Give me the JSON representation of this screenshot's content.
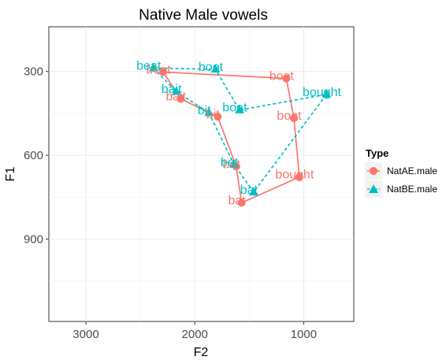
{
  "chart_data": {
    "type": "scatter",
    "title": "Native Male vowels",
    "xlabel": "F2",
    "ylabel": "F1",
    "x_reversed": true,
    "y_reversed": true,
    "xlim": [
      3340,
      540
    ],
    "ylim": [
      140,
      1195
    ],
    "xticks": [
      3000,
      2000,
      1000
    ],
    "xtick_labels": [
      "3000",
      "2000",
      "1000"
    ],
    "yticks": [
      300,
      600,
      900
    ],
    "ytick_labels": [
      "300",
      "600",
      "900"
    ],
    "grid": true,
    "legend": {
      "title": "Type",
      "placement": "right",
      "entries": [
        "NatAE.male",
        "NatBE.male"
      ]
    },
    "series": [
      {
        "name": "NatAE.male",
        "color": "#F8766D",
        "marker": "circle",
        "line": "solid",
        "points": [
          {
            "label": "beat",
            "x": 2290,
            "y": 302
          },
          {
            "label": "boot",
            "x": 1160,
            "y": 325
          },
          {
            "label": "boat",
            "x": 1090,
            "y": 467
          },
          {
            "label": "bought",
            "x": 1040,
            "y": 678
          },
          {
            "label": "bat",
            "x": 1570,
            "y": 770
          },
          {
            "label": "bet",
            "x": 1620,
            "y": 640
          },
          {
            "label": "bit",
            "x": 1790,
            "y": 462
          },
          {
            "label": "bait",
            "x": 2130,
            "y": 398
          }
        ]
      },
      {
        "name": "NatBE.male",
        "color": "#00BFC4",
        "marker": "triangle",
        "line": "dashed",
        "points": [
          {
            "label": "beat",
            "x": 2380,
            "y": 288
          },
          {
            "label": "boot",
            "x": 1810,
            "y": 292
          },
          {
            "label": "boat",
            "x": 1590,
            "y": 438
          },
          {
            "label": "bought",
            "x": 790,
            "y": 382
          },
          {
            "label": "bat",
            "x": 1460,
            "y": 732
          },
          {
            "label": "bet",
            "x": 1640,
            "y": 633
          },
          {
            "label": "bit",
            "x": 1870,
            "y": 448
          },
          {
            "label": "bait",
            "x": 2170,
            "y": 372
          }
        ]
      }
    ]
  }
}
